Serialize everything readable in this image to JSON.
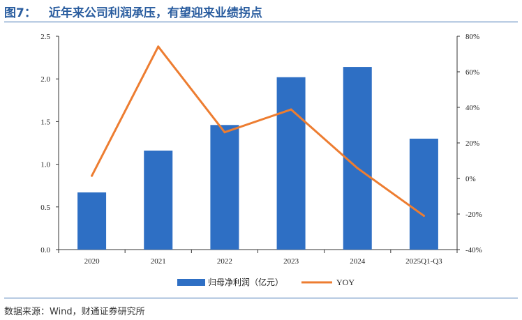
{
  "title": {
    "number": "图7：",
    "text": "近年来公司利润承压，有望迎来业绩拐点"
  },
  "source": "数据来源：Wind，财通证券研究所",
  "chart_data": {
    "type": "bar+line",
    "categories": [
      "2020",
      "2021",
      "2022",
      "2023",
      "2024",
      "2025Q1-Q3"
    ],
    "series": [
      {
        "name": "归母净利润（亿元）",
        "type": "bar",
        "axis": "left",
        "values": [
          0.67,
          1.16,
          1.46,
          2.02,
          2.14,
          1.3
        ],
        "color": "#2e6fc4"
      },
      {
        "name": "YOY",
        "type": "line",
        "axis": "right",
        "values": [
          1.5,
          74.2,
          26.0,
          38.8,
          5.8,
          -21.0
        ],
        "color": "#ed7d31"
      }
    ],
    "y_left": {
      "min": 0,
      "max": 2.5,
      "ticks": [
        "0.0",
        "0.5",
        "1.0",
        "1.5",
        "2.0",
        "2.5"
      ]
    },
    "y_right": {
      "min": -40,
      "max": 80,
      "ticks": [
        "-40%",
        "-20%",
        "0%",
        "20%",
        "40%",
        "60%",
        "80%"
      ]
    },
    "legend_position": "bottom",
    "grid": false
  }
}
